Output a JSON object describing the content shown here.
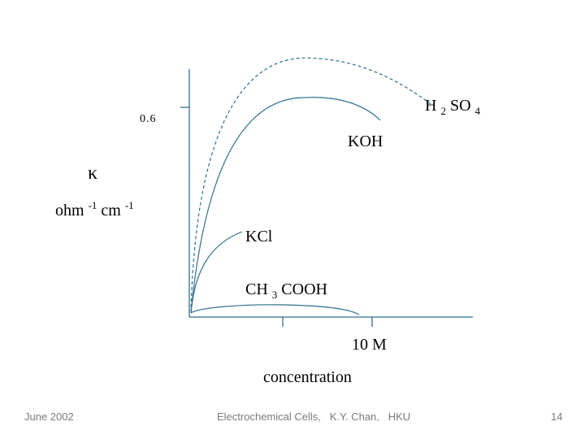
{
  "diagram": {
    "y_tick_label": "0.6",
    "y_symbol": "κ",
    "y_unit": {
      "ohm": "ohm",
      "ohm_exp": "-1",
      "cm": " cm",
      "cm_exp": "-1"
    },
    "x_tick_label": "10 M",
    "x_label": "concentration",
    "curves": [
      {
        "name": "H2SO4",
        "label_parts": [
          "H",
          "2",
          "SO",
          "4"
        ],
        "style": "dashed"
      },
      {
        "name": "KOH",
        "label": "KOH",
        "style": "solid"
      },
      {
        "name": "KCl",
        "label": "KCl",
        "style": "solid"
      },
      {
        "name": "CH3COOH",
        "label_parts": [
          "CH",
          "3",
          "COOH"
        ],
        "style": "solid"
      }
    ]
  },
  "footer": {
    "date": "June 2002",
    "title": "Electrochemical Cells,   K.Y. Chan,   HKU",
    "page": "14"
  },
  "colors": {
    "line": "#2e6f8e",
    "text": "#000000",
    "footer_text": "#7a7a7a"
  }
}
